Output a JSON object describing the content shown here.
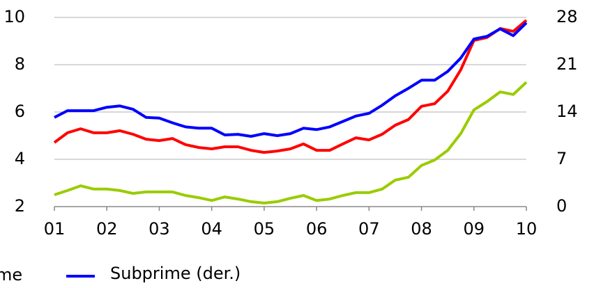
{
  "chart_data": {
    "type": "line",
    "categories": [
      "01",
      null,
      null,
      null,
      "02",
      null,
      null,
      null,
      "03",
      null,
      null,
      null,
      "04",
      null,
      null,
      null,
      "05",
      null,
      null,
      null,
      "06",
      null,
      null,
      null,
      "07",
      null,
      null,
      null,
      "08",
      null,
      null,
      null,
      "09",
      null,
      null,
      null,
      "10"
    ],
    "ylim": [
      2,
      10
    ],
    "yticks": [
      2,
      4,
      6,
      8,
      10
    ],
    "y2lim": [
      0,
      28
    ],
    "y2ticks": [
      0,
      7,
      14,
      21,
      28
    ],
    "grid": true,
    "legend_clipped_text": "me",
    "series": [
      {
        "color": "#ff0000",
        "values": [
          4.71,
          5.12,
          5.29,
          5.12,
          5.12,
          5.21,
          5.06,
          4.85,
          4.79,
          4.88,
          4.62,
          4.5,
          4.44,
          4.53,
          4.53,
          4.38,
          4.29,
          4.35,
          4.44,
          4.65,
          4.38,
          4.38,
          4.65,
          4.91,
          4.82,
          5.06,
          5.44,
          5.68,
          6.24,
          6.35,
          6.88,
          7.79,
          9.03,
          9.15,
          9.53,
          9.41,
          9.88
        ]
      },
      {
        "color": "#99cc00",
        "values": [
          2.5,
          2.68,
          2.88,
          2.74,
          2.74,
          2.68,
          2.56,
          2.62,
          2.62,
          2.62,
          2.47,
          2.38,
          2.26,
          2.41,
          2.32,
          2.21,
          2.15,
          2.21,
          2.35,
          2.47,
          2.26,
          2.32,
          2.47,
          2.59,
          2.59,
          2.74,
          3.12,
          3.24,
          3.74,
          3.97,
          4.38,
          5.09,
          6.09,
          6.44,
          6.85,
          6.74,
          7.26
        ]
      },
      {
        "name": "Subprime (der.)",
        "color": "#0000ff",
        "axis": "y2",
        "values": [
          13.2,
          14.2,
          14.2,
          14.2,
          14.7,
          14.9,
          14.4,
          13.2,
          13.1,
          12.4,
          11.8,
          11.6,
          11.6,
          10.6,
          10.7,
          10.4,
          10.8,
          10.5,
          10.8,
          11.6,
          11.4,
          11.8,
          12.6,
          13.4,
          13.8,
          15.0,
          16.4,
          17.5,
          18.7,
          18.7,
          20.0,
          22.0,
          24.8,
          25.2,
          26.3,
          25.3,
          27.2
        ]
      }
    ]
  }
}
